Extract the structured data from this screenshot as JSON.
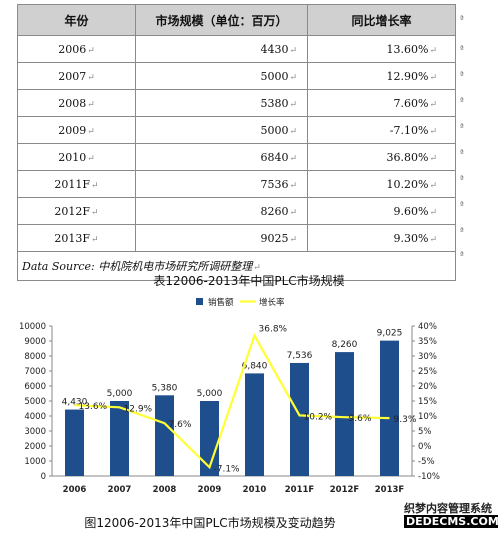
{
  "table": {
    "headers": [
      "年份",
      "市场规模（单位：百万）",
      "同比增长率"
    ],
    "rows": [
      [
        "2006",
        "4430",
        "13.60%"
      ],
      [
        "2007",
        "5000",
        "12.90%"
      ],
      [
        "2008",
        "5380",
        "7.60%"
      ],
      [
        "2009",
        "5000",
        "-7.10%"
      ],
      [
        "2010",
        "6840",
        "36.80%"
      ],
      [
        "2011F",
        "7536",
        "10.20%"
      ],
      [
        "2012F",
        "8260",
        "9.60%"
      ],
      [
        "2013F",
        "9025",
        "9.30%"
      ]
    ],
    "source": "Data Source: 中机院机电市场研究所调研整理",
    "mark": "↵",
    "side_mark": "ª"
  },
  "caption_table": "表12006-2013年中国PLC市场规模",
  "caption_chart": "图12006-2013年中国PLC市场规模及变动趋势",
  "watermark": {
    "line1": "织梦内容管理系统",
    "line2": "DEDECMS.COM"
  },
  "colors": {
    "bar": "#1f4e8c",
    "line": "#ffff33",
    "header_bg": "#d0d0d0"
  },
  "chart_data": {
    "type": "bar",
    "categories": [
      "2006",
      "2007",
      "2008",
      "2009",
      "2010",
      "2011F",
      "2012F",
      "2013F"
    ],
    "series": [
      {
        "name": "销售额",
        "type": "bar",
        "axis": "left",
        "values": [
          4430,
          5000,
          5380,
          5000,
          6840,
          7536,
          8260,
          9025
        ],
        "labels": [
          "4,430",
          "5,000",
          "5,380",
          "5,000",
          "6,840",
          "7,536",
          "8,260",
          "9,025"
        ]
      },
      {
        "name": "增长率",
        "type": "line",
        "axis": "right",
        "values": [
          13.6,
          12.9,
          7.6,
          -7.1,
          36.8,
          10.2,
          9.6,
          9.3
        ],
        "labels": [
          "13.6%",
          "12.9%",
          "7.6%",
          "-7.1%",
          "36.8%",
          "10.2%",
          "9.6%",
          "9.3%"
        ]
      }
    ],
    "y_left": {
      "range": [
        0,
        10000
      ],
      "ticks": [
        "0",
        "1000",
        "2000",
        "3000",
        "4000",
        "5000",
        "6000",
        "7000",
        "8000",
        "9000",
        "10000"
      ]
    },
    "y_right": {
      "range": [
        -10,
        40
      ],
      "ticks": [
        "-10%",
        "-5%",
        "0%",
        "5%",
        "10%",
        "15%",
        "20%",
        "25%",
        "30%",
        "35%",
        "40%"
      ]
    },
    "legend_position": "top-center",
    "grid": false
  }
}
